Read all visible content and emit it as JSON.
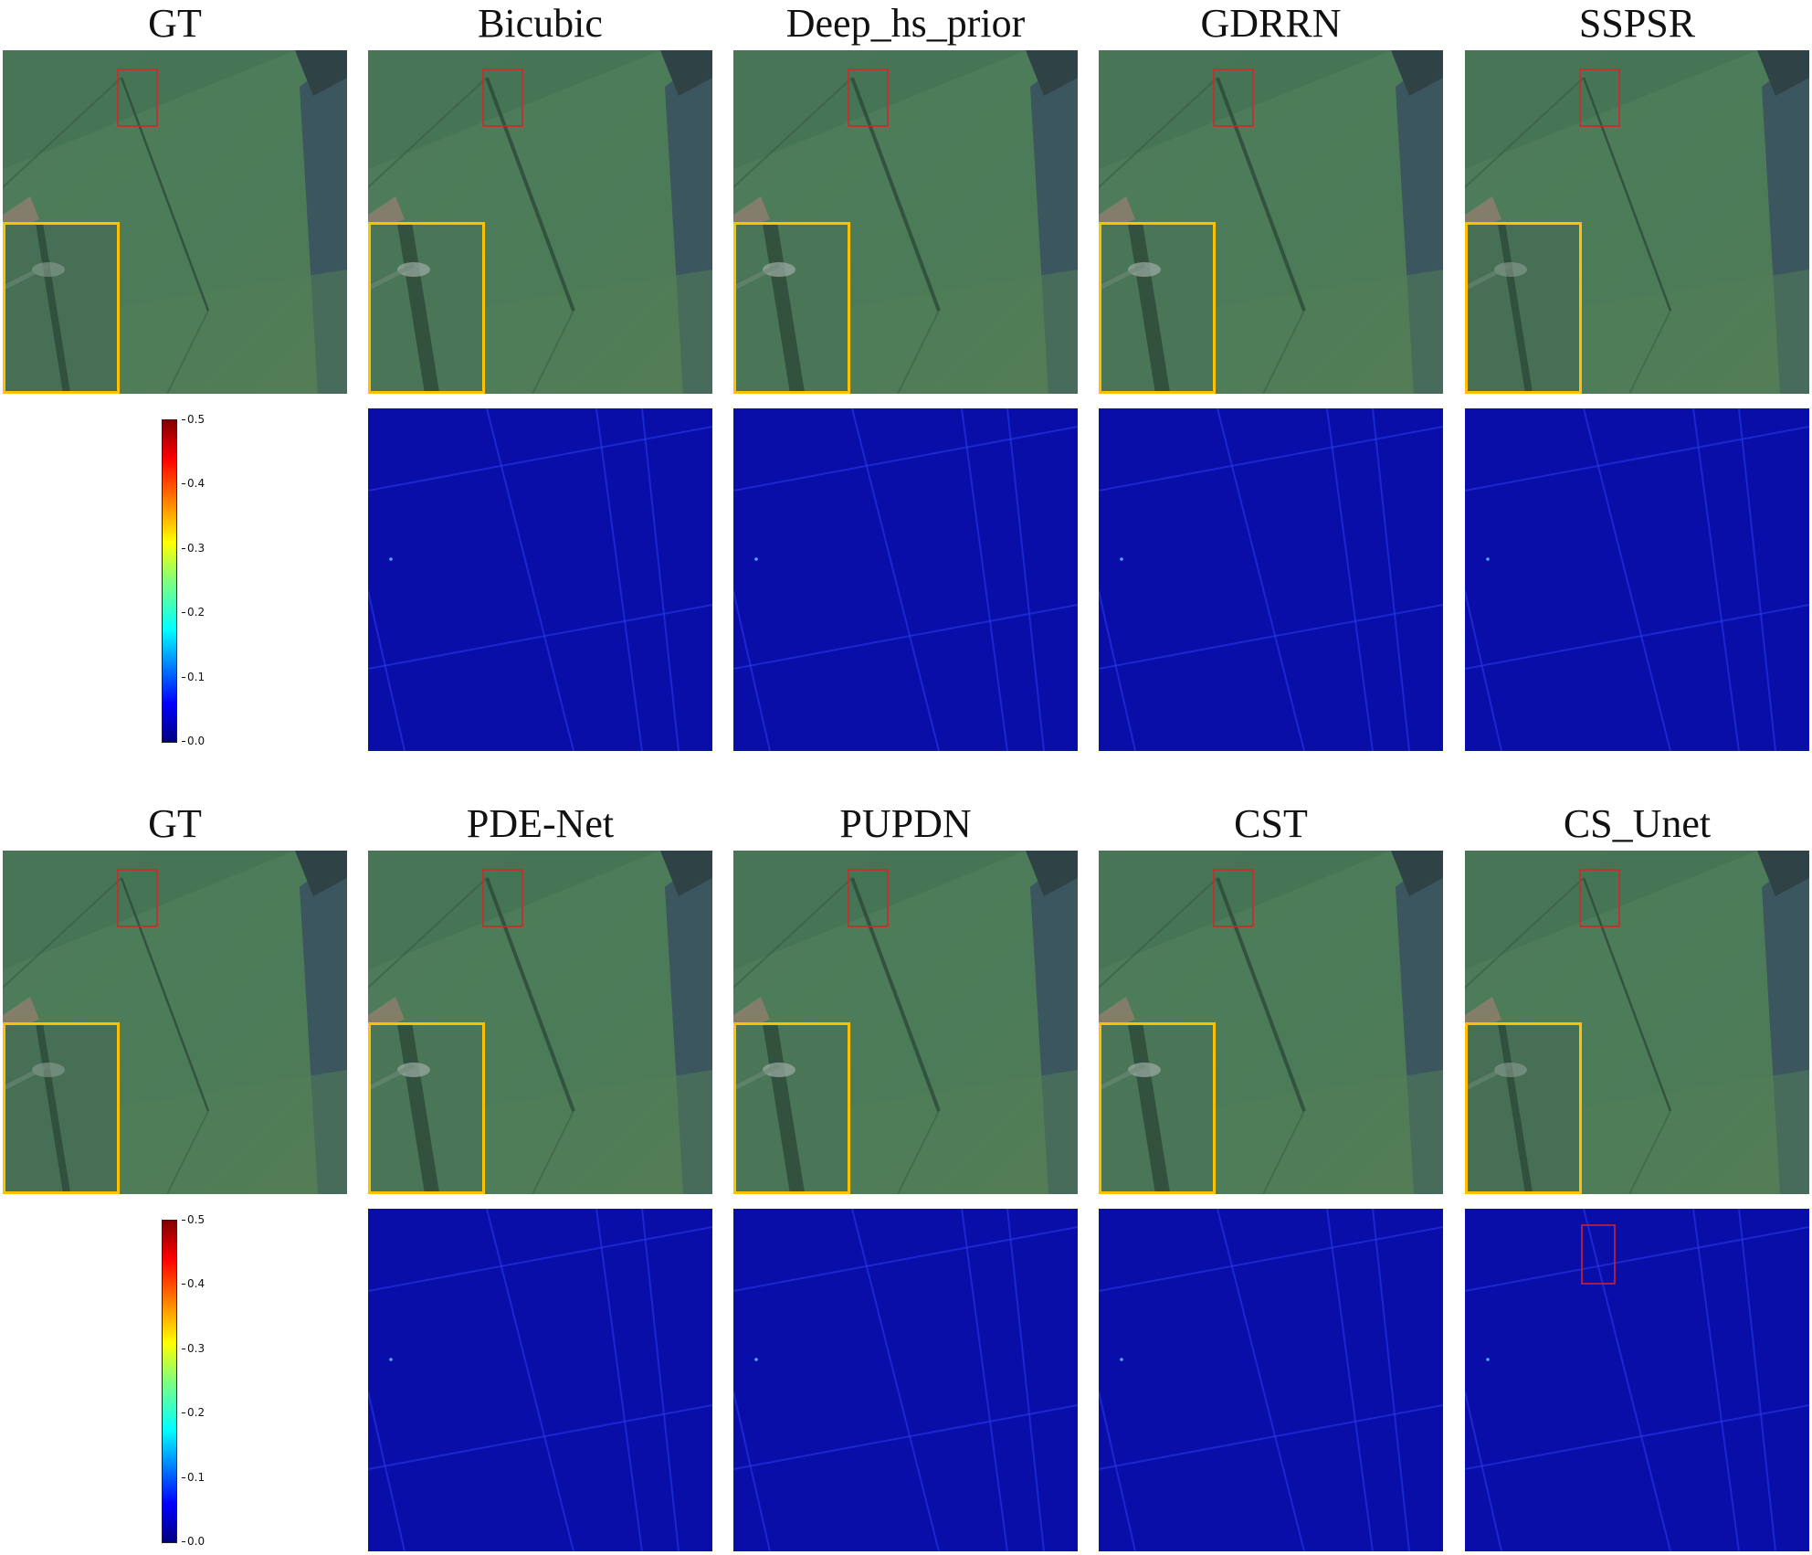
{
  "rows": [
    {
      "titles": [
        "GT",
        "Bicubic",
        "Deep_hs_prior",
        "GDRRN",
        "SSPSR"
      ],
      "colorbar_ticks": [
        "0.5",
        "0.4",
        "0.3",
        "0.2",
        "0.1",
        "0.0"
      ]
    },
    {
      "titles": [
        "GT",
        "PDE-Net",
        "PUPDN",
        "CST",
        "CS_Unet"
      ],
      "colorbar_ticks": [
        "0.5",
        "0.4",
        "0.3",
        "0.2",
        "0.1",
        "0.0"
      ]
    }
  ],
  "colormap": "jet",
  "colorbar_range": [
    0.0,
    0.5
  ],
  "colors": {
    "zoom_box": "#ffc000",
    "roi_box": "#e02020",
    "field": "#4d7a5a",
    "error_bg": "#0a0ea8"
  }
}
